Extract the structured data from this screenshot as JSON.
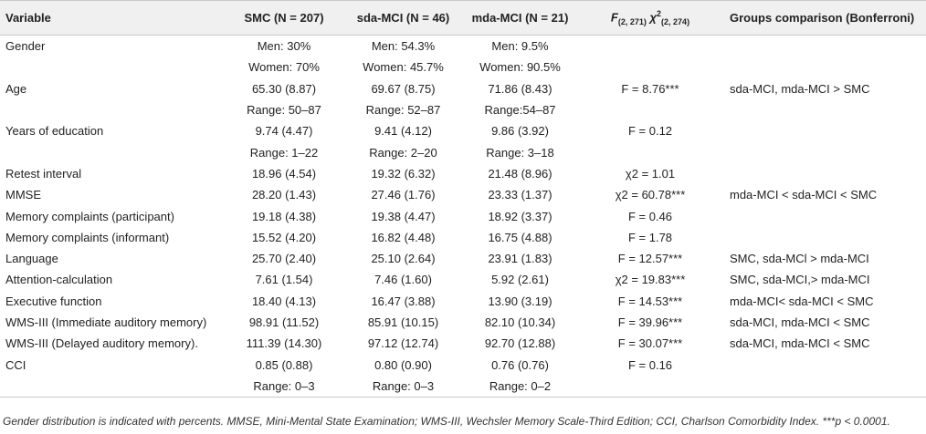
{
  "header": {
    "variable": "Variable",
    "smc": "SMC (N = 207)",
    "sda": "sda-MCI (N = 46)",
    "mda": "mda-MCI (N = 21)",
    "stat_f": "F",
    "stat_f_sub": "(2, 271)",
    "stat_chi": "χ",
    "stat_chi_sup": "2",
    "stat_chi_sub": "(2, 274)",
    "groups": "Groups comparison (Bonferroni)"
  },
  "rows": [
    {
      "variable": "Gender",
      "smc": "Men: 30%",
      "sda": "Men: 54.3%",
      "mda": "Men: 9.5%",
      "stat": "",
      "groups": ""
    },
    {
      "variable": "",
      "smc": "Women: 70%",
      "sda": "Women: 45.7%",
      "mda": "Women: 90.5%",
      "stat": "",
      "groups": ""
    },
    {
      "variable": "Age",
      "smc": "65.30 (8.87)",
      "sda": "69.67 (8.75)",
      "mda": "71.86 (8.43)",
      "stat": "F = 8.76***",
      "groups": "sda-MCI, mda-MCI > SMC"
    },
    {
      "variable": "",
      "smc": "Range: 50–87",
      "sda": "Range: 52–87",
      "mda": "Range:54–87",
      "stat": "",
      "groups": ""
    },
    {
      "variable": "Years of education",
      "smc": "9.74 (4.47)",
      "sda": "9.41 (4.12)",
      "mda": "9.86 (3.92)",
      "stat": "F = 0.12",
      "groups": ""
    },
    {
      "variable": "",
      "smc": "Range: 1–22",
      "sda": "Range: 2–20",
      "mda": "Range: 3–18",
      "stat": "",
      "groups": ""
    },
    {
      "variable": "Retest interval",
      "smc": "18.96 (4.54)",
      "sda": "19.32 (6.32)",
      "mda": "21.48 (8.96)",
      "stat": "χ2 = 1.01",
      "groups": ""
    },
    {
      "variable": "MMSE",
      "smc": "28.20 (1.43)",
      "sda": "27.46 (1.76)",
      "mda": "23.33 (1.37)",
      "stat": "χ2 = 60.78***",
      "groups": "mda-MCI < sda-MCI < SMC"
    },
    {
      "variable": "Memory complaints (participant)",
      "smc": "19.18 (4.38)",
      "sda": "19.38 (4.47)",
      "mda": "18.92 (3.37)",
      "stat": "F = 0.46",
      "groups": ""
    },
    {
      "variable": "Memory complaints (informant)",
      "smc": "15.52 (4.20)",
      "sda": "16.82 (4.48)",
      "mda": "16.75 (4.88)",
      "stat": "F = 1.78",
      "groups": ""
    },
    {
      "variable": "Language",
      "smc": "25.70 (2.40)",
      "sda": "25.10 (2.64)",
      "mda": "23.91 (1.83)",
      "stat": "F = 12.57***",
      "groups": "SMC, sda-MCl > mda-MCI"
    },
    {
      "variable": "Attention-calculation",
      "smc": "7.61 (1.54)",
      "sda": "7.46 (1.60)",
      "mda": "5.92 (2.61)",
      "stat": "χ2 = 19.83***",
      "groups": "SMC, sda-MCI,> mda-MCI"
    },
    {
      "variable": "Executive function",
      "smc": "18.40 (4.13)",
      "sda": "16.47 (3.88)",
      "mda": "13.90 (3.19)",
      "stat": "F = 14.53***",
      "groups": "mda-MCI< sda-MCI < SMC"
    },
    {
      "variable": "WMS-III (Immediate auditory memory)",
      "smc": "98.91 (11.52)",
      "sda": "85.91 (10.15)",
      "mda": "82.10 (10.34)",
      "stat": "F = 39.96***",
      "groups": "sda-MCI, mda-MCI < SMC"
    },
    {
      "variable": "WMS-III (Delayed auditory memory).",
      "smc": "111.39 (14.30)",
      "sda": "97.12 (12.74)",
      "mda": "92.70 (12.88)",
      "stat": "F = 30.07***",
      "groups": "sda-MCI, mda-MCI < SMC"
    },
    {
      "variable": "CCI",
      "smc": "0.85 (0.88)",
      "sda": "0.80 (0.90)",
      "mda": "0.76 (0.76)",
      "stat": "F = 0.16",
      "groups": ""
    },
    {
      "variable": "",
      "smc": "Range: 0–3",
      "sda": "Range: 0–3",
      "mda": "Range: 0–2",
      "stat": "",
      "groups": ""
    }
  ],
  "footnote": "Gender distribution is indicated with percents. MMSE, Mini-Mental State Examination; WMS-III, Wechsler Memory Scale-Third Edition; CCI, Charlson Comorbidity Index. ***p < 0.0001."
}
